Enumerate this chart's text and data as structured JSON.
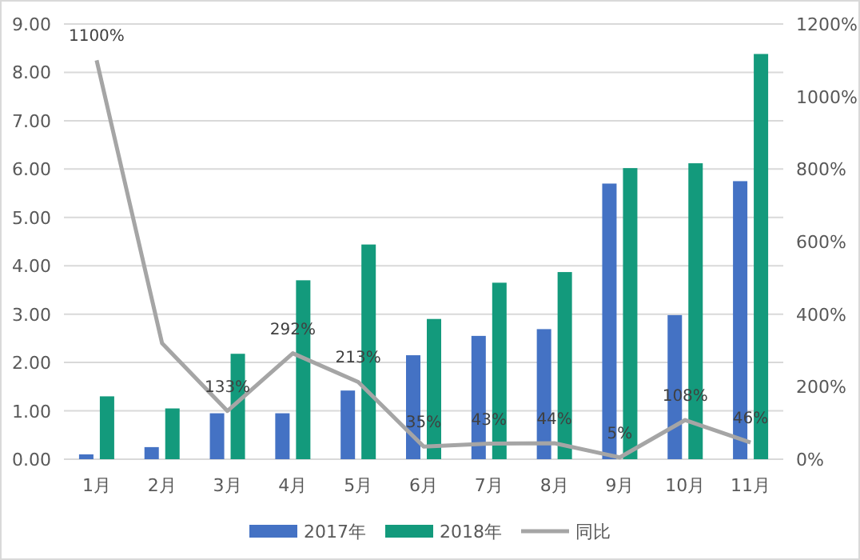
{
  "chart_data": {
    "type": "bar",
    "categories": [
      "1月",
      "2月",
      "3月",
      "4月",
      "5月",
      "6月",
      "7月",
      "8月",
      "9月",
      "10月",
      "11月"
    ],
    "series": [
      {
        "name": "2017年",
        "color": "#4472c4",
        "values": [
          0.1,
          0.25,
          0.95,
          0.95,
          1.42,
          2.15,
          2.55,
          2.69,
          5.7,
          2.98,
          5.75
        ]
      },
      {
        "name": "2018年",
        "color": "#139a7c",
        "values": [
          1.3,
          1.05,
          2.18,
          3.7,
          4.44,
          2.9,
          3.65,
          3.87,
          6.02,
          6.12,
          8.38
        ]
      },
      {
        "name": "同比",
        "color": "#a5a5a5",
        "type": "line",
        "axis": "y2",
        "marker": "none",
        "values": [
          1100,
          320,
          133,
          292,
          213,
          35,
          43,
          44,
          5,
          108,
          46
        ],
        "value_labels": [
          "1100%",
          null,
          "133%",
          "292%",
          "213%",
          "35%",
          "43%",
          "44%",
          "5%",
          "108%",
          "46%"
        ]
      }
    ],
    "ylim": [
      0,
      9
    ],
    "yticks": [
      {
        "value": 0,
        "label": "0.00"
      },
      {
        "value": 1,
        "label": "1.00"
      },
      {
        "value": 2,
        "label": "2.00"
      },
      {
        "value": 3,
        "label": "3.00"
      },
      {
        "value": 4,
        "label": "4.00"
      },
      {
        "value": 5,
        "label": "5.00"
      },
      {
        "value": 6,
        "label": "6.00"
      },
      {
        "value": 7,
        "label": "7.00"
      },
      {
        "value": 8,
        "label": "8.00"
      },
      {
        "value": 9,
        "label": "9.00"
      }
    ],
    "y2lim": [
      0,
      1200
    ],
    "y2ticks": [
      {
        "value": 0,
        "label": "0%"
      },
      {
        "value": 200,
        "label": "200%"
      },
      {
        "value": 400,
        "label": "400%"
      },
      {
        "value": 600,
        "label": "600%"
      },
      {
        "value": 800,
        "label": "800%"
      },
      {
        "value": 1000,
        "label": "1000%"
      },
      {
        "value": 1200,
        "label": "1200%"
      }
    ],
    "grid": "y",
    "legend": "bottom"
  }
}
